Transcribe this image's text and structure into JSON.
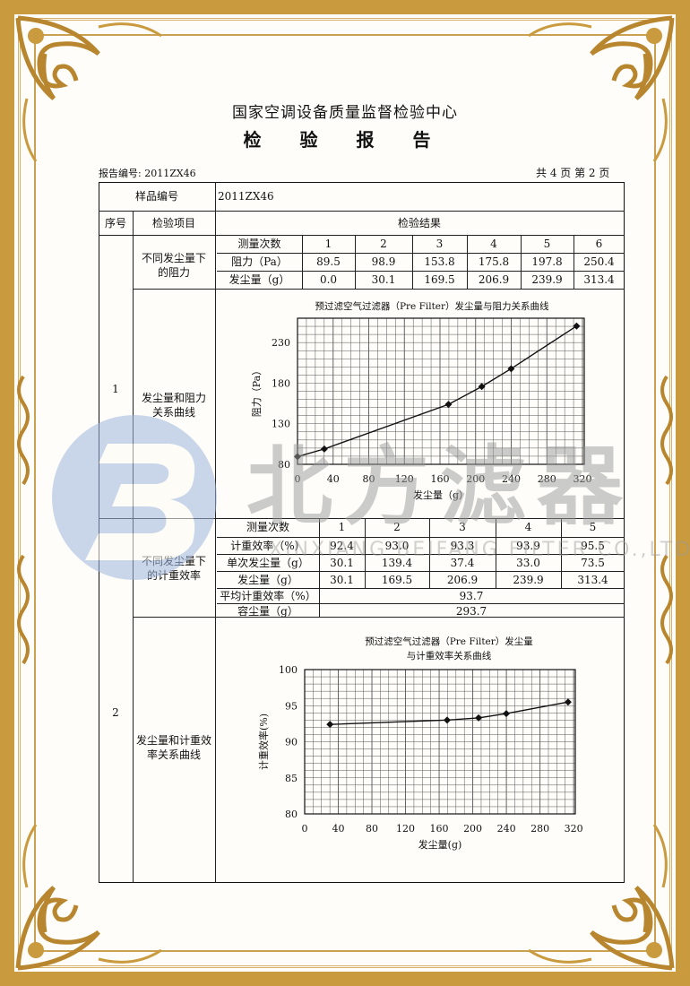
{
  "header": {
    "institution": "国家空调设备质量监督检验中心",
    "doc_title": "检 验 报 告",
    "report_no": "报告编号: 2011ZX46",
    "page_info": "共 4 页 第 2 页"
  },
  "table": {
    "sample_no_label": "样品编号",
    "sample_no_value": "2011ZX46",
    "col_seq": "序号",
    "col_item": "检验项目",
    "col_result": "检验结果",
    "section1": {
      "seq": "1",
      "item_resistance": "不同发尘量下\n的阻力",
      "item_curve": "发尘量和阻力\n关系曲线",
      "rows": [
        [
          "测量次数",
          "1",
          "2",
          "3",
          "4",
          "5",
          "6"
        ],
        [
          "阻力（Pa）",
          "89.5",
          "98.9",
          "153.8",
          "175.8",
          "197.8",
          "250.4"
        ],
        [
          "发尘量（g）",
          "0.0",
          "30.1",
          "169.5",
          "206.9",
          "239.9",
          "313.4"
        ]
      ]
    },
    "section2": {
      "seq": "2",
      "item_efficiency": "不同发尘量下\n的计重效率",
      "item_curve": "发尘量和计重效\n率关系曲线",
      "rows": [
        [
          "测量次数",
          "1",
          "2",
          "3",
          "4",
          "5"
        ],
        [
          "计重效率（%）",
          "92.4",
          "93.0",
          "93.3",
          "93.9",
          "95.5"
        ],
        [
          "单次发尘量（g）",
          "30.1",
          "139.4",
          "37.4",
          "33.0",
          "73.5"
        ],
        [
          "发尘量（g）",
          "30.1",
          "169.5",
          "206.9",
          "239.9",
          "313.4"
        ]
      ],
      "avg_label": "平均计重效率（%）",
      "avg_value": "93.7",
      "capacity_label": "容尘量（g）",
      "capacity_value": "293.7"
    }
  },
  "chart_data": [
    {
      "type": "line",
      "title": "预过滤空气过滤器（Pre Filter）发尘量与阻力关系曲线",
      "xlabel": "发尘量（g）",
      "ylabel": "阻力（Pa）",
      "x": [
        0.0,
        30.1,
        169.5,
        206.9,
        239.9,
        313.4
      ],
      "y": [
        89.5,
        98.9,
        153.8,
        175.8,
        197.8,
        250.4
      ],
      "xlim": [
        0,
        322
      ],
      "ylim": [
        80,
        260
      ],
      "xticks": [
        "0",
        "40",
        "80",
        "120",
        "160",
        "200",
        "240",
        "280",
        "320"
      ],
      "yticks": [
        "80",
        "130",
        "180",
        "230"
      ],
      "grid": true,
      "marker": "diamond"
    },
    {
      "type": "line",
      "title": "预过滤空气过滤器（Pre Filter）发尘量",
      "title_line2": "与计重效率关系曲线",
      "xlabel": "发尘量(g)",
      "ylabel": "计重效率(%)",
      "x": [
        30.1,
        169.5,
        206.9,
        239.9,
        313.4
      ],
      "y": [
        92.4,
        93.0,
        93.3,
        93.9,
        95.5
      ],
      "xlim": [
        0,
        322
      ],
      "ylim": [
        80,
        100
      ],
      "xticks": [
        "0",
        "40",
        "80",
        "120",
        "160",
        "200",
        "240",
        "280",
        "320"
      ],
      "yticks": [
        "80",
        "85",
        "90",
        "95",
        "100"
      ],
      "grid": true,
      "marker": "diamond"
    }
  ],
  "watermark": {
    "cn": "北方滤器",
    "en": "XINXIANG BEIFANG FILTER CO.,LTD.",
    "logo_color": "#9fb6dc",
    "text_color": "#9a9a9a"
  },
  "colors": {
    "frame_gold": "#c99a3e"
  }
}
